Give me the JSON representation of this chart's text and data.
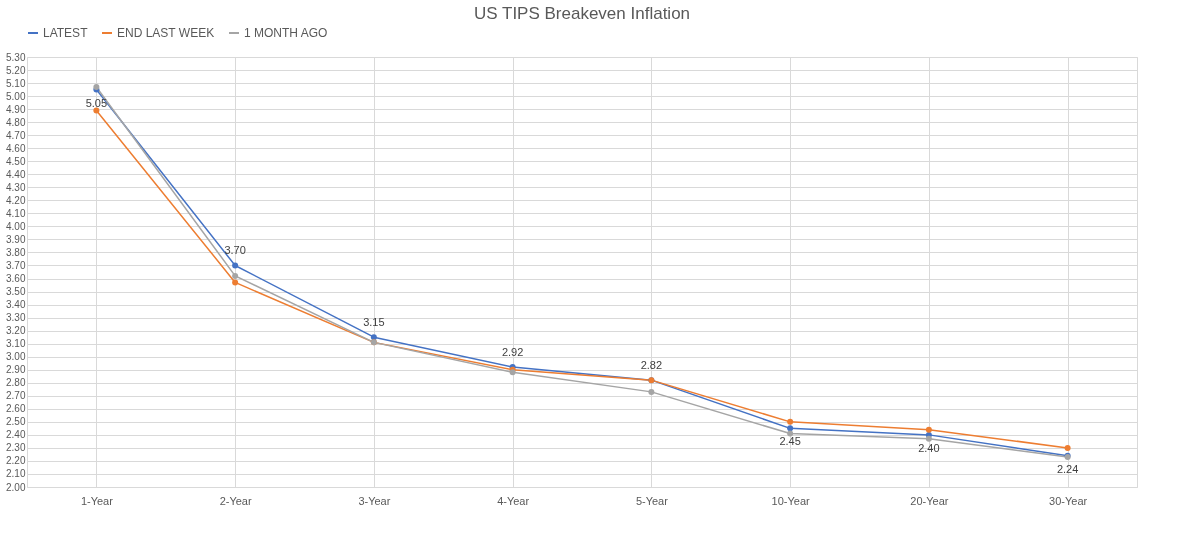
{
  "chart_data": {
    "type": "line",
    "title": "US TIPS Breakeven Inflation",
    "categories": [
      "1-Year",
      "2-Year",
      "3-Year",
      "4-Year",
      "5-Year",
      "10-Year",
      "20-Year",
      "30-Year"
    ],
    "series": [
      {
        "name": "LATEST",
        "color": "#4472c4",
        "values": [
          5.05,
          3.7,
          3.15,
          2.92,
          2.82,
          2.45,
          2.4,
          2.24
        ],
        "value_labels": [
          "5.05",
          "3.70",
          "3.15",
          "2.92",
          "2.82",
          "2.45",
          "2.40",
          "2.24"
        ]
      },
      {
        "name": "END LAST WEEK",
        "color": "#ed7d31",
        "values": [
          4.89,
          3.57,
          3.11,
          2.9,
          2.82,
          2.5,
          2.44,
          2.3
        ]
      },
      {
        "name": "1 MONTH AGO",
        "color": "#a5a5a5",
        "values": [
          5.07,
          3.62,
          3.11,
          2.88,
          2.73,
          2.41,
          2.37,
          2.23
        ]
      }
    ],
    "ylim": [
      2.0,
      5.3
    ],
    "yticks": [
      "2.00",
      "2.10",
      "2.20",
      "2.30",
      "2.40",
      "2.50",
      "2.60",
      "2.70",
      "2.80",
      "2.90",
      "3.00",
      "3.10",
      "3.20",
      "3.30",
      "3.40",
      "3.50",
      "3.60",
      "3.70",
      "3.80",
      "3.90",
      "4.00",
      "4.10",
      "4.20",
      "4.30",
      "4.40",
      "4.50",
      "4.60",
      "4.70",
      "4.80",
      "4.90",
      "5.00",
      "5.10",
      "5.20",
      "5.30"
    ],
    "grid": true,
    "legend": "top",
    "marker": "circle",
    "line_style": "solid"
  }
}
